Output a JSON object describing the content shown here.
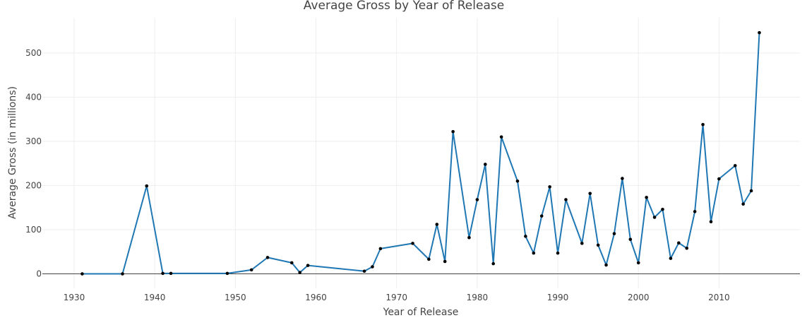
{
  "chart_data": {
    "type": "line",
    "title": "Average Gross by Year of Release",
    "xlabel": "Year of Release",
    "ylabel": "Average Gross (in millions)",
    "xlim": [
      1926,
      2020
    ],
    "ylim": [
      -35,
      580
    ],
    "x_ticks": [
      1930,
      1940,
      1950,
      1960,
      1970,
      1980,
      1990,
      2000,
      2010
    ],
    "y_ticks": [
      0,
      100,
      200,
      300,
      400,
      500
    ],
    "grid": true,
    "legend": "none",
    "series": [
      {
        "color": "#1f77b4",
        "marker_color": "#000000",
        "points": [
          [
            1931,
            0
          ],
          [
            1936,
            0
          ],
          [
            1939,
            199
          ],
          [
            1941,
            1
          ],
          [
            1942,
            1
          ],
          [
            1949,
            1
          ],
          [
            1952,
            9
          ],
          [
            1954,
            37
          ],
          [
            1957,
            25
          ],
          [
            1958,
            3
          ],
          [
            1959,
            19
          ],
          [
            1966,
            6
          ],
          [
            1967,
            16
          ],
          [
            1968,
            57
          ],
          [
            1972,
            69
          ],
          [
            1974,
            33
          ],
          [
            1975,
            112
          ],
          [
            1976,
            28
          ],
          [
            1977,
            322
          ],
          [
            1979,
            82
          ],
          [
            1980,
            168
          ],
          [
            1981,
            248
          ],
          [
            1982,
            23
          ],
          [
            1983,
            310
          ],
          [
            1985,
            210
          ],
          [
            1986,
            85
          ],
          [
            1987,
            47
          ],
          [
            1988,
            131
          ],
          [
            1989,
            197
          ],
          [
            1990,
            47
          ],
          [
            1991,
            168
          ],
          [
            1993,
            69
          ],
          [
            1994,
            182
          ],
          [
            1995,
            65
          ],
          [
            1996,
            20
          ],
          [
            1997,
            91
          ],
          [
            1998,
            216
          ],
          [
            1999,
            78
          ],
          [
            2000,
            25
          ],
          [
            2001,
            173
          ],
          [
            2002,
            128
          ],
          [
            2003,
            146
          ],
          [
            2004,
            35
          ],
          [
            2005,
            70
          ],
          [
            2006,
            58
          ],
          [
            2007,
            141
          ],
          [
            2008,
            338
          ],
          [
            2009,
            118
          ],
          [
            2010,
            215
          ],
          [
            2012,
            245
          ],
          [
            2013,
            158
          ],
          [
            2014,
            188
          ],
          [
            2015,
            546
          ]
        ]
      }
    ]
  }
}
